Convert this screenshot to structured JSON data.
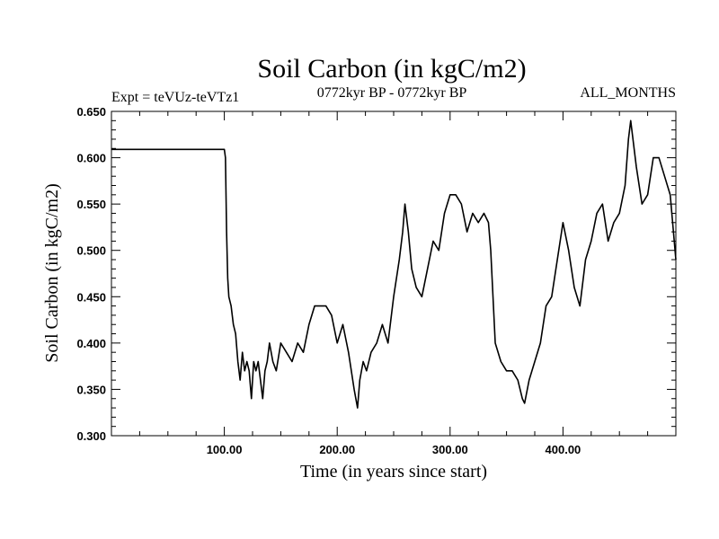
{
  "chart_data": {
    "type": "line",
    "title": "Soil Carbon (in kgC/m2)",
    "subtitle_left": "Expt = teVUz-teVTz1",
    "subtitle_center": "0772kyr BP - 0772kyr BP",
    "subtitle_right": "ALL_MONTHS",
    "xlabel": "Time (in years since start)",
    "ylabel": "Soil Carbon (in kgC/m2)",
    "xlim": [
      0,
      500
    ],
    "ylim": [
      0.3,
      0.65
    ],
    "x_ticks": [
      100,
      200,
      300,
      400
    ],
    "x_tick_labels": [
      "100.00",
      "200.00",
      "300.00",
      "400.00"
    ],
    "y_ticks": [
      0.3,
      0.35,
      0.4,
      0.45,
      0.5,
      0.55,
      0.6,
      0.65
    ],
    "y_tick_labels": [
      "0.300",
      "0.350",
      "0.400",
      "0.450",
      "0.500",
      "0.550",
      "0.600",
      "0.650"
    ],
    "series": [
      {
        "name": "Soil Carbon",
        "color": "#000000",
        "x": [
          0,
          100,
          101,
          102,
          103,
          104,
          106,
          108,
          110,
          112,
          114,
          116,
          118,
          120,
          122,
          124,
          126,
          128,
          130,
          132,
          134,
          136,
          138,
          140,
          143,
          146,
          150,
          155,
          160,
          165,
          170,
          175,
          180,
          185,
          190,
          195,
          200,
          205,
          210,
          215,
          218,
          220,
          223,
          226,
          230,
          235,
          240,
          245,
          250,
          255,
          258,
          260,
          263,
          266,
          270,
          275,
          280,
          285,
          290,
          295,
          300,
          305,
          310,
          315,
          320,
          325,
          330,
          334,
          336,
          340,
          345,
          350,
          355,
          360,
          364,
          366,
          370,
          375,
          380,
          385,
          390,
          395,
          400,
          405,
          410,
          415,
          420,
          425,
          430,
          435,
          440,
          445,
          450,
          455,
          458,
          460,
          465,
          470,
          475,
          480,
          485,
          490,
          495,
          500
        ],
        "y": [
          0.609,
          0.609,
          0.6,
          0.52,
          0.47,
          0.45,
          0.44,
          0.42,
          0.41,
          0.38,
          0.36,
          0.39,
          0.37,
          0.38,
          0.37,
          0.34,
          0.38,
          0.37,
          0.38,
          0.36,
          0.34,
          0.37,
          0.38,
          0.4,
          0.38,
          0.37,
          0.4,
          0.39,
          0.38,
          0.4,
          0.39,
          0.42,
          0.44,
          0.44,
          0.44,
          0.43,
          0.4,
          0.42,
          0.39,
          0.35,
          0.33,
          0.36,
          0.38,
          0.37,
          0.39,
          0.4,
          0.42,
          0.4,
          0.45,
          0.49,
          0.52,
          0.55,
          0.52,
          0.48,
          0.46,
          0.45,
          0.48,
          0.51,
          0.5,
          0.54,
          0.56,
          0.56,
          0.55,
          0.52,
          0.54,
          0.53,
          0.54,
          0.53,
          0.5,
          0.4,
          0.38,
          0.37,
          0.37,
          0.36,
          0.34,
          0.335,
          0.36,
          0.38,
          0.4,
          0.44,
          0.45,
          0.49,
          0.53,
          0.5,
          0.46,
          0.44,
          0.49,
          0.51,
          0.54,
          0.55,
          0.51,
          0.53,
          0.54,
          0.57,
          0.62,
          0.64,
          0.59,
          0.55,
          0.56,
          0.6,
          0.6,
          0.58,
          0.56,
          0.49
        ]
      }
    ]
  }
}
